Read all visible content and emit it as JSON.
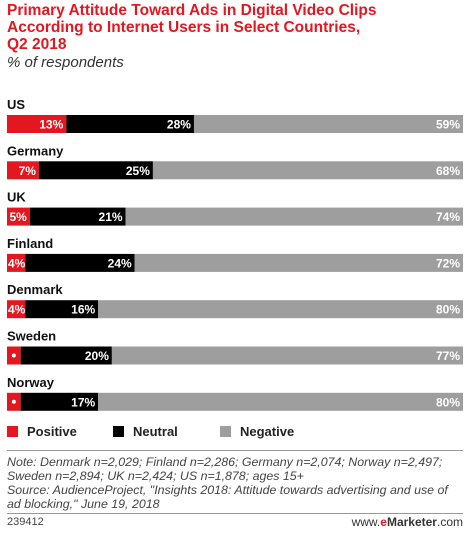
{
  "header": {
    "title_line1": "Primary Attitude Toward Ads in Digital Video Clips",
    "title_line2": "According to Internet Users in Select Countries,",
    "title_line3": "Q2 2018",
    "subtitle": "% of respondents"
  },
  "colors": {
    "positive": "#e4161f",
    "neutral": "#000000",
    "negative": "#9e9e9e",
    "title": "#e4161f"
  },
  "chart_data": {
    "type": "bar",
    "orientation": "horizontal-stacked",
    "categories": [
      "US",
      "Germany",
      "UK",
      "Finland",
      "Denmark",
      "Sweden",
      "Norway"
    ],
    "series": [
      {
        "name": "Positive",
        "values": [
          13,
          7,
          5,
          4,
          4,
          3,
          3
        ]
      },
      {
        "name": "Neutral",
        "values": [
          28,
          25,
          21,
          24,
          16,
          20,
          17
        ]
      },
      {
        "name": "Negative",
        "values": [
          59,
          68,
          74,
          72,
          80,
          77,
          80
        ]
      }
    ],
    "value_suffix": "%",
    "xlim": [
      0,
      100
    ],
    "legend_position": "bottom-left",
    "grid": false
  },
  "legend": {
    "items": [
      {
        "label": "Positive",
        "color": "#e4161f"
      },
      {
        "label": "Neutral",
        "color": "#000000"
      },
      {
        "label": "Negative",
        "color": "#9e9e9e"
      }
    ]
  },
  "footer": {
    "note": "Note: Denmark n=2,029; Finland n=2,286; Germany n=2,074; Norway n=2,497; Sweden n=2,894; UK n=2,424; US n=1,878; ages 15+\nSource: AudienceProject, \"Insights 2018: Attitude towards advertising and use of ad blocking,\" June 19, 2018",
    "chart_id": "239412",
    "brand_prefix": "www.",
    "brand_accent": "e",
    "brand_rest": "Marketer",
    "brand_suffix": ".com"
  }
}
